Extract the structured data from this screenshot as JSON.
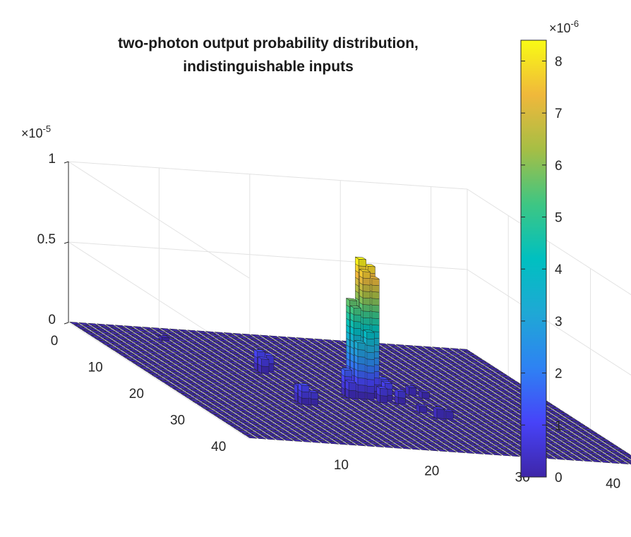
{
  "chart_data": {
    "type": "bar3",
    "title": [
      "two-photon output probability distribution,",
      "indistinguishable inputs"
    ],
    "xlabel": "",
    "ylabel": "",
    "zlabel": "",
    "x_ticks": [
      "10",
      "20",
      "30",
      "40"
    ],
    "y_ticks": [
      "0",
      "10",
      "20",
      "30",
      "40"
    ],
    "z_ticks": [
      "0",
      "0.5",
      "1"
    ],
    "z_exponent": {
      "base": "10",
      "power": "-5"
    },
    "zlim": [
      0,
      1e-05
    ],
    "grid_size": [
      44,
      44
    ],
    "colorbar": {
      "ticks": [
        "0",
        "1",
        "2",
        "3",
        "4",
        "5",
        "6",
        "7",
        "8"
      ],
      "exponent": {
        "base": "10",
        "power": "-6"
      },
      "range": [
        0,
        8.4e-06
      ],
      "colormap": "parula",
      "colormap_stops": [
        "#3e26a8",
        "#4743f8",
        "#2e82f3",
        "#1fa8d5",
        "#00c0c0",
        "#3ec683",
        "#a6be45",
        "#f0b83b",
        "#f9fb14"
      ]
    },
    "grid": true,
    "background_bar_value": 5e-08,
    "peaks": [
      {
        "x": 22,
        "y": 21,
        "value": 8.4e-06
      },
      {
        "x": 22,
        "y": 22,
        "value": 7.8e-06
      },
      {
        "x": 23,
        "y": 21,
        "value": 8e-06
      },
      {
        "x": 23,
        "y": 22,
        "value": 7.4e-06
      },
      {
        "x": 21,
        "y": 21,
        "value": 5.8e-06
      },
      {
        "x": 21,
        "y": 22,
        "value": 5.5e-06
      },
      {
        "x": 22,
        "y": 23,
        "value": 4.2e-06
      },
      {
        "x": 21,
        "y": 23,
        "value": 3.5e-06
      },
      {
        "x": 20,
        "y": 22,
        "value": 1.6e-06
      },
      {
        "x": 24,
        "y": 22,
        "value": 1.2e-06
      },
      {
        "x": 20,
        "y": 23,
        "value": 1e-06
      },
      {
        "x": 24,
        "y": 23,
        "value": 1.1e-06
      },
      {
        "x": 23,
        "y": 24,
        "value": 9e-07
      },
      {
        "x": 25,
        "y": 24,
        "value": 8e-07
      },
      {
        "x": 14,
        "y": 14,
        "value": 1.2e-06
      },
      {
        "x": 15,
        "y": 14,
        "value": 1e-06
      },
      {
        "x": 14,
        "y": 15,
        "value": 9e-07
      },
      {
        "x": 13,
        "y": 27,
        "value": 1.2e-06
      },
      {
        "x": 13,
        "y": 26,
        "value": 1e-06
      },
      {
        "x": 14,
        "y": 27,
        "value": 8e-07
      },
      {
        "x": 28,
        "y": 20,
        "value": 5e-07
      },
      {
        "x": 29,
        "y": 21,
        "value": 4e-07
      },
      {
        "x": 27,
        "y": 29,
        "value": 6e-07
      },
      {
        "x": 28,
        "y": 29,
        "value": 5e-07
      },
      {
        "x": 26,
        "y": 27,
        "value": 4e-07
      },
      {
        "x": 8,
        "y": 4,
        "value": 2e-07
      }
    ]
  }
}
